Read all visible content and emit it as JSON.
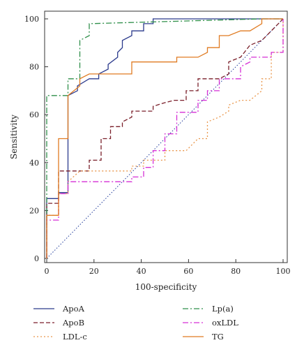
{
  "chart_data": {
    "type": "line",
    "title": "",
    "xlabel": "100-specificity",
    "ylabel": "Sensitivity",
    "xlim": [
      0,
      100
    ],
    "ylim": [
      0,
      100
    ],
    "xticks": [
      0,
      20,
      40,
      60,
      80,
      100
    ],
    "yticks": [
      0,
      20,
      40,
      60,
      80,
      100
    ],
    "legend_position": "bottom",
    "reference_line": {
      "x": [
        0,
        100
      ],
      "y": [
        0,
        100
      ],
      "style": "dotted",
      "color": "#1f3a9a"
    },
    "series": [
      {
        "name": "ApoA",
        "color": "#2b3a8c",
        "dash": "",
        "x": [
          0,
          0,
          5,
          5,
          9,
          9,
          13,
          13,
          18,
          22,
          22,
          26,
          26,
          30,
          30,
          32,
          32,
          36,
          36,
          41,
          41,
          45,
          45,
          91,
          100
        ],
        "y": [
          0,
          25,
          25,
          27.5,
          27.5,
          68,
          70,
          72,
          75,
          75,
          77,
          79,
          81,
          84,
          86,
          88,
          91,
          93,
          95,
          95,
          98,
          98,
          100,
          100,
          100
        ]
      },
      {
        "name": "ApoB",
        "color": "#7a1f2a",
        "dash": "6,3",
        "x": [
          0,
          0,
          5,
          5,
          18,
          18,
          23,
          23,
          27,
          27,
          32,
          32,
          36,
          36,
          41,
          45,
          45,
          50,
          54,
          59,
          59,
          64,
          64,
          73,
          77,
          77,
          82,
          86,
          91,
          95,
          100
        ],
        "y": [
          0,
          23,
          23,
          36.5,
          36.5,
          41,
          41,
          50,
          50,
          55,
          55,
          57,
          59,
          61.5,
          61.5,
          61.5,
          63.5,
          65,
          66,
          66,
          70,
          70,
          75,
          75,
          77,
          82,
          84,
          89,
          91,
          95,
          100
        ]
      },
      {
        "name": "LDL-c",
        "color": "#e9964a",
        "dash": "2,3",
        "x": [
          0,
          0,
          5,
          5,
          9,
          9,
          14,
          32,
          36,
          36,
          41,
          41,
          50,
          50,
          59,
          64,
          68,
          68,
          73,
          77,
          77,
          82,
          86,
          91,
          91,
          95,
          95,
          100,
          100
        ],
        "y": [
          0,
          18,
          18,
          27,
          27,
          32,
          36.5,
          36.5,
          36.5,
          38.5,
          38.5,
          41,
          41,
          45,
          45,
          50,
          50,
          57,
          59,
          61.5,
          64,
          66,
          66,
          70,
          75,
          75,
          86,
          86,
          100
        ]
      },
      {
        "name": "Lp(a)",
        "color": "#2f8f4a",
        "dash": "8,3,2,3",
        "x": [
          0,
          0,
          9,
          9,
          14,
          14,
          18,
          18,
          91,
          100
        ],
        "y": [
          0,
          68,
          68,
          75,
          75,
          91,
          93,
          98,
          100,
          100
        ]
      },
      {
        "name": "oxLDL",
        "color": "#d62fd6",
        "dash": "8,3,2,3",
        "x": [
          0,
          0,
          5,
          5,
          9,
          9,
          36,
          36,
          41,
          41,
          45,
          45,
          50,
          50,
          55,
          55,
          64,
          64,
          68,
          68,
          73,
          73,
          77,
          82,
          82,
          86,
          86,
          91,
          95,
          95,
          100,
          100
        ],
        "y": [
          0,
          16,
          16,
          27,
          27,
          32,
          32,
          34,
          34,
          38,
          38,
          45,
          45,
          52,
          52,
          61,
          61,
          66,
          66,
          70,
          70,
          75,
          75,
          75,
          80,
          82,
          84,
          84,
          84,
          86,
          86,
          100
        ]
      },
      {
        "name": "TG",
        "color": "#e07b22",
        "dash": "",
        "x": [
          0,
          0,
          5,
          5,
          9,
          9,
          14,
          14,
          18,
          36,
          36,
          55,
          55,
          64,
          68,
          68,
          73,
          73,
          77,
          82,
          82,
          86,
          91,
          91,
          100
        ],
        "y": [
          0,
          18,
          18,
          50,
          50,
          68,
          72,
          75,
          77,
          77,
          82,
          82,
          84,
          84,
          86,
          88,
          88,
          93,
          93,
          95,
          95,
          95,
          98,
          100,
          100
        ]
      }
    ]
  }
}
